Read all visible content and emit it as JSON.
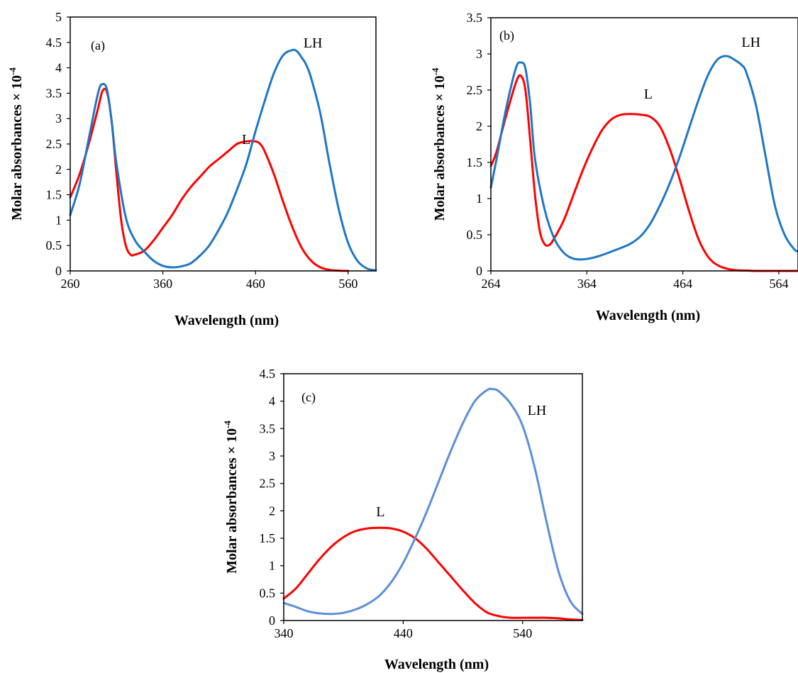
{
  "chart_data": [
    {
      "type": "line",
      "panel_label": "(a)",
      "xlabel": "Wavelength (nm)",
      "ylabel_main": "Molar absorbances × 10",
      "ylabel_exp": "-4",
      "xlim": [
        260,
        590
      ],
      "ylim": [
        0,
        5
      ],
      "xticks": [
        "260",
        "360",
        "460",
        "560"
      ],
      "xtick_values": [
        260,
        360,
        460,
        560
      ],
      "yticks": [
        "0",
        "0.5",
        "1",
        "1.5",
        "2",
        "2.5",
        "3",
        "3.5",
        "4",
        "4.5",
        "5"
      ],
      "ytick_values": [
        0,
        0.5,
        1,
        1.5,
        2,
        2.5,
        3,
        3.5,
        4,
        4.5,
        5
      ],
      "series": [
        {
          "name": "L",
          "color": "#ff0000",
          "label_at": [
            450,
            2.5
          ],
          "x": [
            260,
            270,
            280,
            290,
            295,
            300,
            305,
            310,
            315,
            320,
            325,
            330,
            340,
            350,
            360,
            370,
            380,
            390,
            400,
            410,
            420,
            430,
            440,
            450,
            460,
            465,
            470,
            480,
            490,
            500,
            510,
            520,
            530,
            540,
            550,
            560
          ],
          "y": [
            1.45,
            1.9,
            2.5,
            3.2,
            3.55,
            3.5,
            2.9,
            1.9,
            1.0,
            0.5,
            0.32,
            0.32,
            0.4,
            0.6,
            0.85,
            1.1,
            1.4,
            1.65,
            1.85,
            2.05,
            2.2,
            2.35,
            2.5,
            2.55,
            2.55,
            2.5,
            2.35,
            1.9,
            1.35,
            0.85,
            0.45,
            0.2,
            0.07,
            0.02,
            0.005,
            0
          ]
        },
        {
          "name": "LH",
          "color": "#1f77c4",
          "label_at": [
            522,
            4.4
          ],
          "x": [
            260,
            270,
            280,
            290,
            295,
            300,
            305,
            310,
            320,
            330,
            340,
            350,
            360,
            370,
            380,
            390,
            400,
            410,
            420,
            430,
            440,
            450,
            460,
            470,
            480,
            490,
            500,
            505,
            510,
            515,
            520,
            530,
            540,
            550,
            560,
            570,
            580,
            590
          ],
          "y": [
            1.1,
            1.7,
            2.6,
            3.5,
            3.68,
            3.55,
            2.9,
            2.1,
            1.05,
            0.6,
            0.38,
            0.2,
            0.1,
            0.07,
            0.09,
            0.15,
            0.3,
            0.5,
            0.8,
            1.15,
            1.6,
            2.1,
            2.75,
            3.35,
            3.9,
            4.25,
            4.35,
            4.32,
            4.2,
            4.05,
            3.8,
            3.1,
            2.1,
            1.2,
            0.55,
            0.2,
            0.05,
            0.01
          ]
        }
      ]
    },
    {
      "type": "line",
      "panel_label": "(b)",
      "xlabel": "Wavelength (nm)",
      "ylabel_main": "Molar absorbances × 10",
      "ylabel_exp": "-4",
      "xlim": [
        264,
        584
      ],
      "ylim": [
        0,
        3.5
      ],
      "xticks": [
        "264",
        "364",
        "464",
        "564"
      ],
      "xtick_values": [
        264,
        364,
        464,
        564
      ],
      "yticks": [
        "0",
        "0.5",
        "1",
        "1.5",
        "2",
        "2.5",
        "3",
        "3.5"
      ],
      "ytick_values": [
        0,
        0.5,
        1,
        1.5,
        2,
        2.5,
        3,
        3.5
      ],
      "series": [
        {
          "name": "L",
          "color": "#ff0000",
          "label_at": [
            428,
            2.38
          ],
          "x": [
            264,
            270,
            280,
            290,
            295,
            300,
            305,
            310,
            315,
            320,
            325,
            330,
            340,
            350,
            360,
            370,
            380,
            390,
            400,
            410,
            420,
            430,
            440,
            450,
            460,
            470,
            480,
            490,
            500,
            510,
            520,
            530,
            540,
            550,
            560,
            570,
            584
          ],
          "y": [
            1.45,
            1.65,
            2.15,
            2.6,
            2.7,
            2.5,
            1.8,
            1.05,
            0.55,
            0.37,
            0.36,
            0.45,
            0.7,
            1.05,
            1.4,
            1.7,
            1.95,
            2.1,
            2.16,
            2.17,
            2.16,
            2.13,
            2.0,
            1.7,
            1.3,
            0.85,
            0.45,
            0.2,
            0.08,
            0.03,
            0.01,
            0.005,
            0,
            0,
            0,
            0,
            0
          ]
        },
        {
          "name": "LH",
          "color": "#1f77c4",
          "label_at": [
            535,
            3.1
          ],
          "x": [
            264,
            270,
            280,
            290,
            295,
            300,
            305,
            310,
            320,
            330,
            340,
            350,
            360,
            370,
            380,
            390,
            400,
            410,
            420,
            430,
            440,
            450,
            460,
            470,
            480,
            490,
            500,
            510,
            520,
            525,
            530,
            540,
            550,
            560,
            570,
            580,
            584
          ],
          "y": [
            1.15,
            1.55,
            2.25,
            2.8,
            2.88,
            2.8,
            2.3,
            1.55,
            0.85,
            0.45,
            0.25,
            0.17,
            0.16,
            0.18,
            0.22,
            0.27,
            0.32,
            0.38,
            0.48,
            0.65,
            0.9,
            1.2,
            1.55,
            1.95,
            2.35,
            2.7,
            2.92,
            2.97,
            2.9,
            2.85,
            2.75,
            2.3,
            1.6,
            0.9,
            0.5,
            0.3,
            0.27
          ]
        }
      ]
    },
    {
      "type": "line",
      "panel_label": "(c)",
      "xlabel": "Wavelength (nm)",
      "ylabel_main": "Molar absorbances × 10",
      "ylabel_exp": "-4",
      "xlim": [
        340,
        590
      ],
      "ylim": [
        0,
        4.5
      ],
      "xticks": [
        "340",
        "440",
        "540"
      ],
      "xtick_values": [
        340,
        440,
        540
      ],
      "yticks": [
        "0",
        "0.5",
        "1",
        "1.5",
        "2",
        "2.5",
        "3",
        "3.5",
        "4",
        "4.5"
      ],
      "ytick_values": [
        0,
        0.5,
        1,
        1.5,
        2,
        2.5,
        3,
        3.5,
        4,
        4.5
      ],
      "series": [
        {
          "name": "L",
          "color": "#ff0000",
          "label_at": [
            421,
            1.9
          ],
          "x": [
            340,
            350,
            360,
            370,
            380,
            390,
            400,
            410,
            420,
            430,
            440,
            450,
            460,
            470,
            480,
            490,
            500,
            510,
            520,
            530,
            540,
            550,
            560,
            570,
            580,
            590
          ],
          "y": [
            0.4,
            0.58,
            0.85,
            1.12,
            1.35,
            1.52,
            1.63,
            1.68,
            1.69,
            1.68,
            1.62,
            1.5,
            1.3,
            1.05,
            0.8,
            0.55,
            0.32,
            0.15,
            0.08,
            0.05,
            0.05,
            0.05,
            0.05,
            0.04,
            0.02,
            0.01
          ]
        },
        {
          "name": "LH",
          "color": "#5b8fd6",
          "label_at": [
            552,
            3.75
          ],
          "x": [
            340,
            350,
            360,
            370,
            380,
            390,
            400,
            410,
            420,
            430,
            440,
            450,
            460,
            470,
            480,
            490,
            500,
            510,
            515,
            520,
            530,
            540,
            550,
            560,
            570,
            580,
            590
          ],
          "y": [
            0.32,
            0.25,
            0.17,
            0.13,
            0.12,
            0.14,
            0.2,
            0.3,
            0.45,
            0.7,
            1.05,
            1.5,
            2.0,
            2.55,
            3.1,
            3.6,
            4.0,
            4.2,
            4.22,
            4.18,
            3.95,
            3.55,
            2.8,
            1.8,
            0.9,
            0.35,
            0.12
          ]
        }
      ]
    }
  ]
}
